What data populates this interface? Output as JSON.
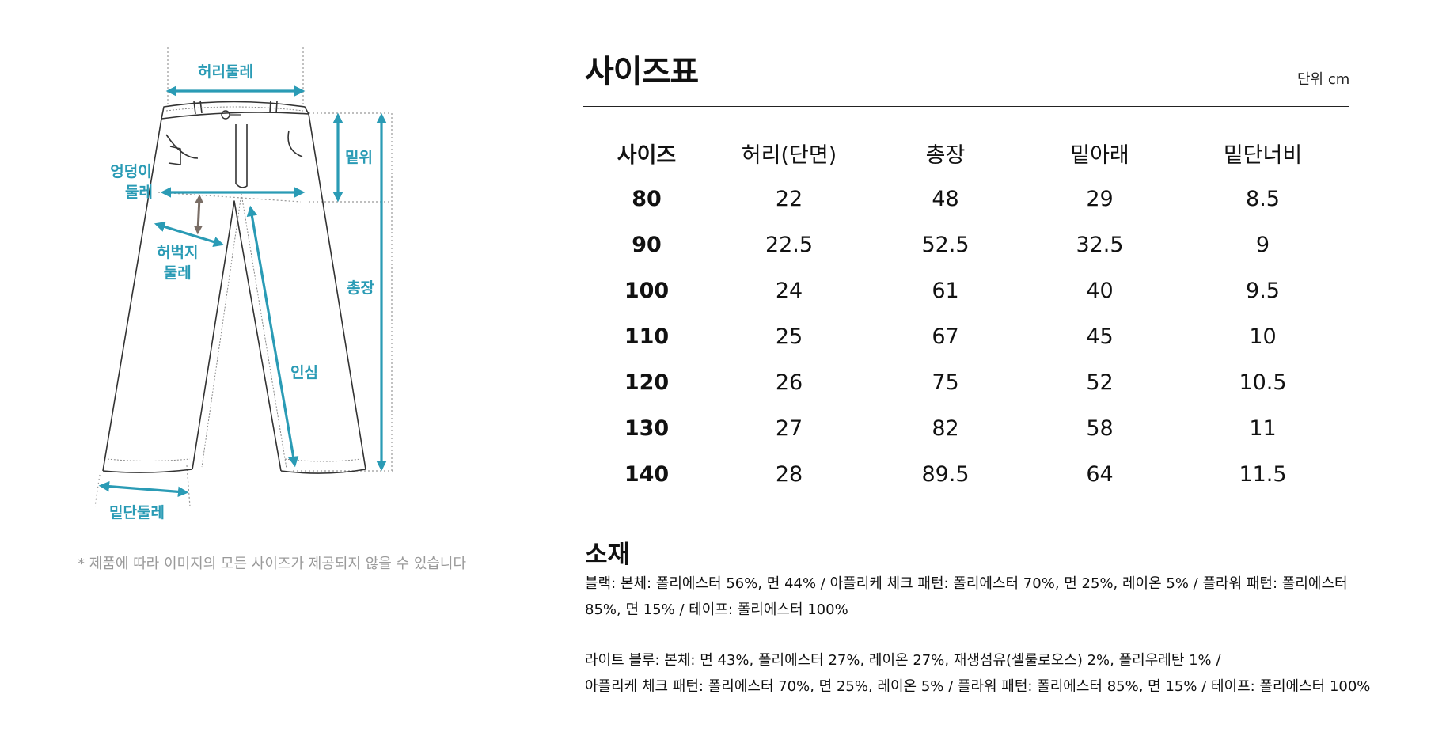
{
  "diagram": {
    "labels": {
      "waist": "허리둘레",
      "rise": "밑위",
      "hip_line1": "엉덩이",
      "hip_line2": "둘레",
      "thigh_line1": "허벅지",
      "thigh_line2": "둘레",
      "total_length": "총장",
      "inseam": "인심",
      "hem": "밑단둘레"
    },
    "accent_color": "#2a9bb5",
    "secondary_arrow_color": "#7a6e66",
    "icon": "jeans-outline-icon"
  },
  "note": "* 제품에 따라 이미지의 모든 사이즈가 제공되지 않을 수 있습니다",
  "size_chart": {
    "title": "사이즈표",
    "unit": "단위 cm",
    "headers": [
      "사이즈",
      "허리(단면)",
      "총장",
      "밑아래",
      "밑단너비"
    ],
    "rows": [
      [
        "80",
        "22",
        "48",
        "29",
        "8.5"
      ],
      [
        "90",
        "22.5",
        "52.5",
        "32.5",
        "9"
      ],
      [
        "100",
        "24",
        "61",
        "40",
        "9.5"
      ],
      [
        "110",
        "25",
        "67",
        "45",
        "10"
      ],
      [
        "120",
        "26",
        "75",
        "52",
        "10.5"
      ],
      [
        "130",
        "27",
        "82",
        "58",
        "11"
      ],
      [
        "140",
        "28",
        "89.5",
        "64",
        "11.5"
      ]
    ]
  },
  "material": {
    "title": "소재",
    "black_line1": "블랙: 본체: 폴리에스터 56%, 면 44% / 아플리케 체크 패턴: 폴리에스터 70%, 면 25%, 레이온 5% / 플라워 패턴: 폴리에스터",
    "black_line2": "85%, 면 15% / 테이프: 폴리에스터 100%",
    "lightblue_line1": "라이트 블루: 본체: 면 43%, 폴리에스터 27%, 레이온 27%, 재생섬유(셀룰로오스) 2%, 폴리우레탄 1% /",
    "lightblue_line2": "아플리케 체크 패턴: 폴리에스터 70%, 면 25%, 레이온 5% / 플라워 패턴: 폴리에스터 85%, 면 15% / 테이프: 폴리에스터 100%"
  }
}
